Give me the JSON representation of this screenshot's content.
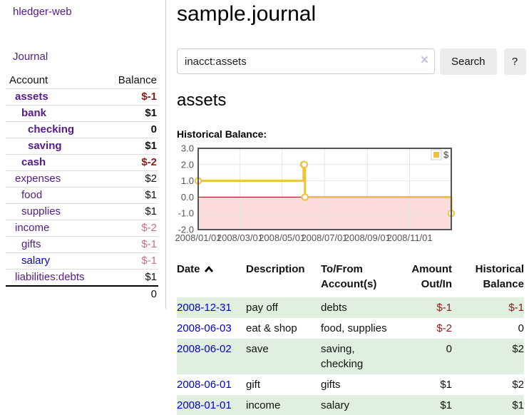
{
  "app": {
    "title": "hledger-web"
  },
  "sidebar": {
    "journal_link": "Journal",
    "accounts_header": {
      "account": "Account",
      "balance": "Balance"
    },
    "accounts": [
      {
        "name": "assets",
        "depth": 1,
        "bold": true,
        "balance": "$-1",
        "balance_class": "neg-strong"
      },
      {
        "name": "bank",
        "depth": 2,
        "bold": true,
        "balance": "$1",
        "balance_class": "plain"
      },
      {
        "name": "checking",
        "depth": 3,
        "bold": true,
        "balance": "0",
        "balance_class": "plain"
      },
      {
        "name": "saving",
        "depth": 3,
        "bold": true,
        "balance": "$1",
        "balance_class": "plain"
      },
      {
        "name": "cash",
        "depth": 2,
        "bold": true,
        "balance": "$-2",
        "balance_class": "neg-strong"
      },
      {
        "name": "expenses",
        "depth": 1,
        "bold": false,
        "balance": "$2",
        "balance_class": "plain"
      },
      {
        "name": "food",
        "depth": 2,
        "bold": false,
        "balance": "$1",
        "balance_class": "plain"
      },
      {
        "name": "supplies",
        "depth": 2,
        "bold": false,
        "balance": "$1",
        "balance_class": "plain"
      },
      {
        "name": "income",
        "depth": 1,
        "bold": false,
        "balance": "$-2",
        "balance_class": "neg-light"
      },
      {
        "name": "gifts",
        "depth": 2,
        "bold": false,
        "balance": "$-1",
        "balance_class": "neg-light"
      },
      {
        "name": "salary",
        "depth": 2,
        "bold": false,
        "balance": "$-1",
        "balance_class": "neg-light",
        "link_color": "blue"
      },
      {
        "name": "liabilities:debts",
        "depth": 1,
        "bold": false,
        "balance": "$1",
        "balance_class": "plain"
      }
    ],
    "total": "0"
  },
  "header": {
    "title": "sample.journal"
  },
  "search": {
    "value": "inacct:assets",
    "clear_icon": "×",
    "button": "Search",
    "help_button": "?"
  },
  "account_page": {
    "heading": "assets",
    "chart_label": "Historical Balance:"
  },
  "chart_data": {
    "type": "line",
    "step": true,
    "title": "Historical Balance:",
    "series": [
      {
        "name": "$",
        "color": "#edc240",
        "points": [
          [
            "2008-01-01",
            1
          ],
          [
            "2008-06-01",
            2
          ],
          [
            "2008-06-02",
            2
          ],
          [
            "2008-06-03",
            0
          ],
          [
            "2008-12-31",
            -1
          ]
        ]
      }
    ],
    "x_range": [
      "2008-01-01",
      "2008-12-31"
    ],
    "x_ticks": [
      {
        "date": "2008-01-01",
        "label": "2008/01/01"
      },
      {
        "date": "2008-03-01",
        "label": "2008/03/01"
      },
      {
        "date": "2008-05-01",
        "label": "2008/05/01"
      },
      {
        "date": "2008-07-01",
        "label": "2008/07/01"
      },
      {
        "date": "2008-09-01",
        "label": "2008/09/01"
      },
      {
        "date": "2008-11-01",
        "label": "2008/11/01"
      }
    ],
    "y_ticks": [
      {
        "value": 3,
        "label": "3.0"
      },
      {
        "value": 2,
        "label": "2.0"
      },
      {
        "value": 1,
        "label": "1.0"
      },
      {
        "value": 0,
        "label": "0.0"
      },
      {
        "value": -1,
        "label": "-1.0"
      },
      {
        "value": -2,
        "label": "-2.0"
      }
    ],
    "ylim": [
      -2,
      3
    ],
    "grid": true,
    "legend_position": "top-right",
    "negative_region_color": "#fbdbdb",
    "zero_line_color": "#a40000"
  },
  "register": {
    "columns": [
      "Date",
      "Description",
      "To/From Account(s)",
      "Amount Out/In",
      "Historical Balance"
    ],
    "sort_column": "Date",
    "sort_direction": "ascending",
    "rows": [
      {
        "date": "2008-12-31",
        "description": "pay off",
        "accounts": "debts",
        "amount": "$-1",
        "amount_neg": true,
        "balance": "$-1",
        "balance_neg": true
      },
      {
        "date": "2008-06-03",
        "description": "eat & shop",
        "accounts": "food, supplies",
        "amount": "$-2",
        "amount_neg": true,
        "balance": "0",
        "balance_neg": false
      },
      {
        "date": "2008-06-02",
        "description": "save",
        "accounts": "saving, checking",
        "amount": "0",
        "amount_neg": false,
        "balance": "$2",
        "balance_neg": false
      },
      {
        "date": "2008-06-01",
        "description": "gift",
        "accounts": "gifts",
        "amount": "$1",
        "amount_neg": false,
        "balance": "$2",
        "balance_neg": false
      },
      {
        "date": "2008-01-01",
        "description": "income",
        "accounts": "salary",
        "amount": "$1",
        "amount_neg": false,
        "balance": "$1",
        "balance_neg": false
      }
    ]
  },
  "colors": {
    "link_purple": "#551a8b",
    "link_blue": "#0000d2",
    "negative_strong": "#8b1a1a",
    "negative_light": "#c0737d",
    "row_green": "#e0efe0",
    "series_gold": "#edc240"
  }
}
